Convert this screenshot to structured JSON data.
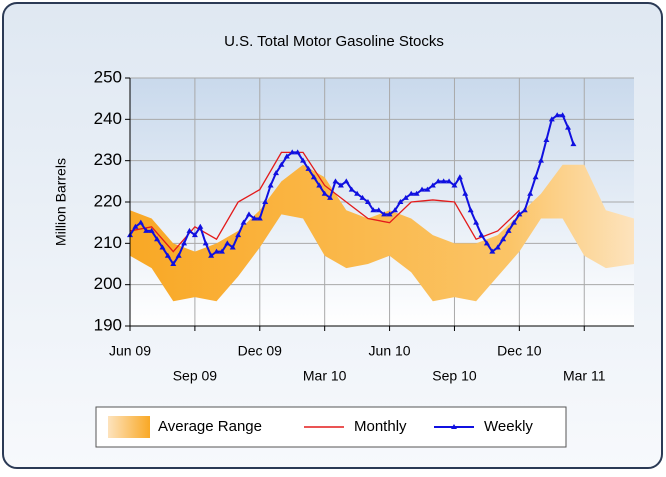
{
  "chart_data": {
    "type": "line",
    "title": "U.S. Total Motor Gasoline Stocks",
    "y_label": "Million Barrels",
    "xlim": [
      0,
      23.3
    ],
    "ylim": [
      190,
      250
    ],
    "yticks": [
      190,
      200,
      210,
      220,
      230,
      240,
      250
    ],
    "xticks": [
      {
        "value": 0,
        "label": "Jun 09"
      },
      {
        "value": 3,
        "label": "Sep 09"
      },
      {
        "value": 6,
        "label": "Dec 09"
      },
      {
        "value": 9,
        "label": "Mar 10"
      },
      {
        "value": 12,
        "label": "Jun 10"
      },
      {
        "value": 15,
        "label": "Sep 10"
      },
      {
        "value": 18,
        "label": "Dec 10"
      },
      {
        "value": 21,
        "label": "Mar 11"
      }
    ],
    "grid": true,
    "legend": "bottom",
    "series": [
      {
        "name": "Average Range",
        "type": "band",
        "color": "#f9b233",
        "x": [
          0,
          1,
          2,
          3,
          4,
          5,
          6,
          7,
          8,
          9,
          10,
          11,
          12,
          13,
          14,
          15,
          16,
          17,
          18,
          19,
          20,
          21,
          22,
          23.3
        ],
        "high": [
          218,
          216,
          210,
          208,
          210,
          213,
          218,
          225,
          229,
          226,
          218,
          216,
          218,
          216,
          212,
          210,
          210,
          212,
          217,
          222,
          229,
          229,
          218,
          216
        ],
        "low": [
          207,
          204,
          196,
          197,
          196,
          202,
          209,
          217,
          216,
          207,
          204,
          205,
          207,
          203,
          196,
          197,
          196,
          202,
          208,
          216,
          216,
          207,
          204,
          205
        ]
      },
      {
        "name": "Monthly",
        "type": "line",
        "color": "#e31b1b",
        "x": [
          0,
          1,
          2,
          3,
          4,
          5,
          6,
          7,
          8,
          9,
          10,
          11,
          12,
          13,
          14,
          15,
          16,
          17,
          18
        ],
        "values": [
          213,
          214,
          208,
          214,
          211,
          220,
          223,
          232,
          232,
          224,
          220,
          216,
          215,
          220,
          220.5,
          220,
          211,
          213,
          218
        ]
      },
      {
        "name": "Weekly",
        "type": "line",
        "color": "#1010e0",
        "markers": true,
        "x": [
          0,
          0.25,
          0.5,
          0.75,
          1,
          1.25,
          1.5,
          1.75,
          2,
          2.25,
          2.5,
          2.75,
          3,
          3.25,
          3.5,
          3.75,
          4,
          4.25,
          4.5,
          4.75,
          5,
          5.25,
          5.5,
          5.75,
          6,
          6.25,
          6.5,
          6.75,
          7,
          7.25,
          7.5,
          7.75,
          8,
          8.25,
          8.5,
          8.75,
          9,
          9.25,
          9.5,
          9.75,
          10,
          10.25,
          10.5,
          10.75,
          11,
          11.25,
          11.5,
          11.75,
          12,
          12.25,
          12.5,
          12.75,
          13,
          13.25,
          13.5,
          13.75,
          14,
          14.25,
          14.5,
          14.75,
          15,
          15.25,
          15.5,
          15.75,
          16,
          16.25,
          16.5,
          16.75,
          17,
          17.25,
          17.5,
          17.75,
          18,
          18.25,
          18.5,
          18.75,
          19,
          19.25,
          19.5,
          19.75,
          20,
          20.25,
          20.5
        ],
        "values": [
          212,
          214,
          215,
          213,
          213,
          211,
          209,
          207,
          205,
          207,
          210,
          213,
          212,
          214,
          210,
          207,
          208,
          208,
          210,
          209,
          212,
          215,
          217,
          216,
          216,
          220,
          224,
          227,
          229,
          231,
          232,
          232,
          230,
          228,
          226,
          224,
          222,
          221,
          225,
          224,
          225,
          223,
          222,
          221,
          220,
          218,
          218,
          217,
          217,
          218,
          220,
          221,
          222,
          222,
          223,
          223,
          224,
          225,
          225,
          225,
          224,
          226,
          222,
          218,
          215,
          212,
          210,
          208,
          209,
          211,
          213,
          215,
          217,
          218,
          222,
          226,
          230,
          235,
          240,
          241,
          241,
          238,
          234
        ]
      }
    ]
  }
}
